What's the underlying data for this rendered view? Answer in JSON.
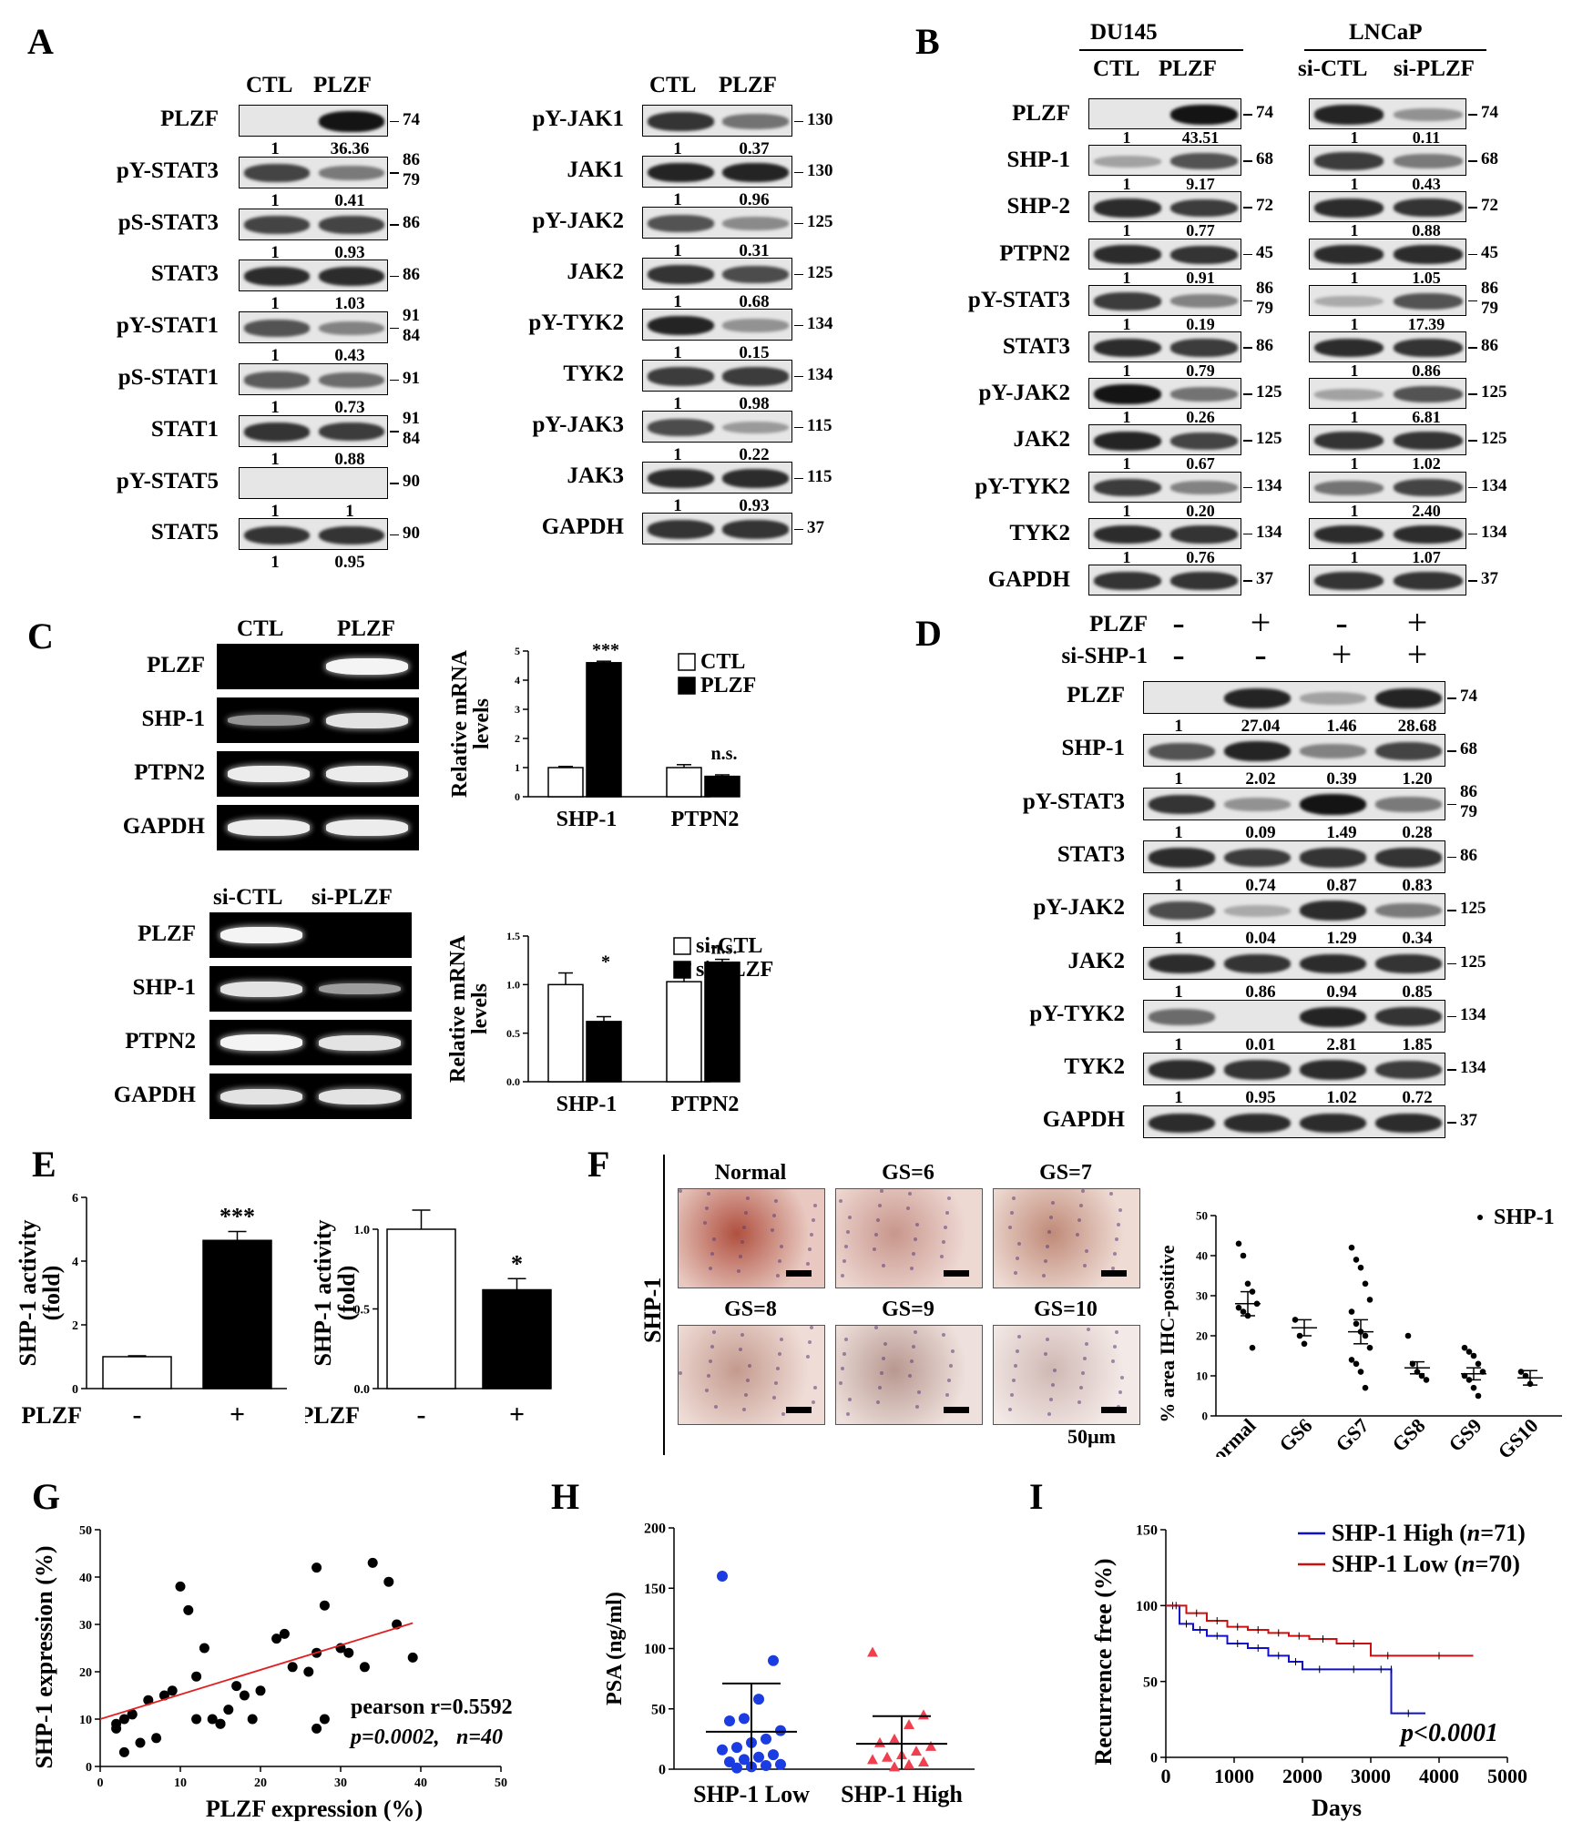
{
  "panels": {
    "A": "A",
    "B": "B",
    "C": "C",
    "D": "D",
    "E": "E",
    "F": "F",
    "G": "G",
    "H": "H",
    "I": "I"
  },
  "panel_A": {
    "left": {
      "header": [
        "CTL",
        "PLZF"
      ],
      "rows": [
        {
          "label": "PLZF",
          "q": [
            "1",
            "36.36"
          ],
          "mw": "74",
          "s": [
            0.0,
            1.0
          ]
        },
        {
          "label": "pY-STAT3",
          "q": [
            "1",
            "0.41"
          ],
          "mw": "86\n79",
          "s": [
            0.7,
            0.35
          ]
        },
        {
          "label": "pS-STAT3",
          "q": [
            "1",
            "0.93"
          ],
          "mw": "86",
          "s": [
            0.7,
            0.7
          ]
        },
        {
          "label": "STAT3",
          "q": [
            "1",
            "1.03"
          ],
          "mw": "86",
          "s": [
            0.85,
            0.85
          ]
        },
        {
          "label": "pY-STAT1",
          "q": [
            "1",
            "0.43"
          ],
          "mw": "91\n84",
          "s": [
            0.6,
            0.3
          ]
        },
        {
          "label": "pS-STAT1",
          "q": [
            "1",
            "0.73"
          ],
          "mw": "91",
          "s": [
            0.55,
            0.45
          ]
        },
        {
          "label": "STAT1",
          "q": [
            "1",
            "0.88"
          ],
          "mw": "91\n84",
          "s": [
            0.8,
            0.75
          ]
        },
        {
          "label": "pY-STAT5",
          "q": [
            "1",
            "1"
          ],
          "mw": "90",
          "s": [
            0.0,
            0.0
          ]
        },
        {
          "label": "STAT5",
          "q": [
            "1",
            "0.95"
          ],
          "mw": "90",
          "s": [
            0.8,
            0.8
          ]
        }
      ]
    },
    "right": {
      "header": [
        "CTL",
        "PLZF"
      ],
      "rows": [
        {
          "label": "pY-JAK1",
          "q": [
            "1",
            "0.37"
          ],
          "mw": "130",
          "s": [
            0.8,
            0.4
          ]
        },
        {
          "label": "JAK1",
          "q": [
            "1",
            "0.96"
          ],
          "mw": "130",
          "s": [
            0.9,
            0.9
          ]
        },
        {
          "label": "pY-JAK2",
          "q": [
            "1",
            "0.31"
          ],
          "mw": "125",
          "s": [
            0.6,
            0.25
          ]
        },
        {
          "label": "JAK2",
          "q": [
            "1",
            "0.68"
          ],
          "mw": "125",
          "s": [
            0.8,
            0.65
          ]
        },
        {
          "label": "pY-TYK2",
          "q": [
            "1",
            "0.15"
          ],
          "mw": "134",
          "s": [
            0.9,
            0.2
          ]
        },
        {
          "label": "TYK2",
          "q": [
            "1",
            "0.98"
          ],
          "mw": "134",
          "s": [
            0.75,
            0.75
          ]
        },
        {
          "label": "pY-JAK3",
          "q": [
            "1",
            "0.22"
          ],
          "mw": "115",
          "s": [
            0.65,
            0.15
          ]
        },
        {
          "label": "JAK3",
          "q": [
            "1",
            "0.93"
          ],
          "mw": "115",
          "s": [
            0.85,
            0.85
          ]
        },
        {
          "label": "GAPDH",
          "q": [
            "",
            ""
          ],
          "mw": "37",
          "s": [
            0.8,
            0.8
          ]
        }
      ]
    }
  },
  "panel_B": {
    "cells": [
      "DU145",
      "LNCaP"
    ],
    "header_du": [
      "CTL",
      "PLZF"
    ],
    "header_ln": [
      "si-CTL",
      "si-PLZF"
    ],
    "rows": [
      {
        "label": "PLZF",
        "q1": [
          "1",
          "43.51"
        ],
        "q2": [
          "1",
          "0.11"
        ],
        "mw": "74",
        "s1": [
          0.0,
          1.0
        ],
        "s2": [
          0.9,
          0.2
        ]
      },
      {
        "label": "SHP-1",
        "q1": [
          "1",
          "9.17"
        ],
        "q2": [
          "1",
          "0.43"
        ],
        "mw": "68",
        "s1": [
          0.1,
          0.6
        ],
        "s2": [
          0.75,
          0.35
        ]
      },
      {
        "label": "SHP-2",
        "q1": [
          "1",
          "0.77"
        ],
        "q2": [
          "1",
          "0.88"
        ],
        "mw": "72",
        "s1": [
          0.85,
          0.75
        ],
        "s2": [
          0.85,
          0.8
        ]
      },
      {
        "label": "PTPN2",
        "q1": [
          "1",
          "0.91"
        ],
        "q2": [
          "1",
          "1.05"
        ],
        "mw": "45",
        "s1": [
          0.85,
          0.8
        ],
        "s2": [
          0.85,
          0.85
        ]
      },
      {
        "label": "pY-STAT3",
        "q1": [
          "1",
          "0.19"
        ],
        "q2": [
          "1",
          "17.39"
        ],
        "mw": "86\n79",
        "s1": [
          0.75,
          0.3
        ],
        "s2": [
          0.05,
          0.6
        ]
      },
      {
        "label": "STAT3",
        "q1": [
          "1",
          "0.79"
        ],
        "q2": [
          "1",
          "0.86"
        ],
        "mw": "86",
        "s1": [
          0.85,
          0.75
        ],
        "s2": [
          0.85,
          0.8
        ]
      },
      {
        "label": "pY-JAK2",
        "q1": [
          "1",
          "0.26"
        ],
        "q2": [
          "1",
          "6.81"
        ],
        "mw": "125",
        "s1": [
          1.0,
          0.4
        ],
        "s2": [
          0.1,
          0.6
        ]
      },
      {
        "label": "JAK2",
        "q1": [
          "1",
          "0.67"
        ],
        "q2": [
          "1",
          "1.02"
        ],
        "mw": "125",
        "s1": [
          0.9,
          0.7
        ],
        "s2": [
          0.8,
          0.8
        ]
      },
      {
        "label": "pY-TYK2",
        "q1": [
          "1",
          "0.20"
        ],
        "q2": [
          "1",
          "2.40"
        ],
        "mw": "134",
        "s1": [
          0.75,
          0.3
        ],
        "s2": [
          0.4,
          0.7
        ]
      },
      {
        "label": "TYK2",
        "q1": [
          "1",
          "0.76"
        ],
        "q2": [
          "1",
          "1.07"
        ],
        "mw": "134",
        "s1": [
          0.85,
          0.8
        ],
        "s2": [
          0.85,
          0.85
        ]
      },
      {
        "label": "GAPDH",
        "q1": [
          "",
          ""
        ],
        "q2": [
          "",
          ""
        ],
        "mw": "37",
        "s1": [
          0.8,
          0.8
        ],
        "s2": [
          0.8,
          0.8
        ]
      }
    ]
  },
  "panel_C": {
    "top": {
      "header": [
        "CTL",
        "PLZF"
      ],
      "rows": [
        {
          "label": "PLZF",
          "s": [
            0,
            1
          ]
        },
        {
          "label": "SHP-1",
          "s": [
            0.4,
            0.9
          ]
        },
        {
          "label": "PTPN2",
          "s": [
            0.95,
            0.95
          ]
        },
        {
          "label": "GAPDH",
          "s": [
            0.95,
            0.95
          ]
        }
      ]
    },
    "bottom": {
      "header": [
        "si-CTL",
        "si-PLZF"
      ],
      "rows": [
        {
          "label": "PLZF",
          "s": [
            1,
            0
          ]
        },
        {
          "label": "SHP-1",
          "s": [
            0.9,
            0.45
          ]
        },
        {
          "label": "PTPN2",
          "s": [
            1,
            0.9
          ]
        },
        {
          "label": "GAPDH",
          "s": [
            0.9,
            0.9
          ]
        }
      ]
    }
  },
  "panel_D": {
    "conditions": [
      {
        "label": "PLZF",
        "signs": [
          "-",
          "+",
          "-",
          "+"
        ]
      },
      {
        "label": "si-SHP-1",
        "signs": [
          "-",
          "-",
          "+",
          "+"
        ]
      }
    ],
    "rows": [
      {
        "label": "PLZF",
        "q": [
          "1",
          "27.04",
          "1.46",
          "28.68"
        ],
        "mw": "74",
        "s": [
          0,
          0.9,
          0.1,
          0.9
        ]
      },
      {
        "label": "SHP-1",
        "q": [
          "1",
          "2.02",
          "0.39",
          "1.20"
        ],
        "mw": "68",
        "s": [
          0.6,
          0.9,
          0.3,
          0.7
        ]
      },
      {
        "label": "pY-STAT3",
        "q": [
          "1",
          "0.09",
          "1.49",
          "0.28"
        ],
        "mw": "86\n79",
        "s": [
          0.8,
          0.2,
          1,
          0.35
        ]
      },
      {
        "label": "STAT3",
        "q": [
          "1",
          "0.74",
          "0.87",
          "0.83"
        ],
        "mw": "86",
        "s": [
          0.85,
          0.75,
          0.8,
          0.8
        ]
      },
      {
        "label": "pY-JAK2",
        "q": [
          "1",
          "0.04",
          "1.29",
          "0.34"
        ],
        "mw": "125",
        "s": [
          0.65,
          0.05,
          0.85,
          0.35
        ]
      },
      {
        "label": "JAK2",
        "q": [
          "1",
          "0.86",
          "0.94",
          "0.85"
        ],
        "mw": "125",
        "s": [
          0.85,
          0.8,
          0.85,
          0.8
        ]
      },
      {
        "label": "pY-TYK2",
        "q": [
          "1",
          "0.01",
          "2.81",
          "1.85"
        ],
        "mw": "134",
        "s": [
          0.45,
          0.0,
          0.9,
          0.8
        ]
      },
      {
        "label": "TYK2",
        "q": [
          "1",
          "0.95",
          "1.02",
          "0.72"
        ],
        "mw": "134",
        "s": [
          0.85,
          0.8,
          0.85,
          0.75
        ]
      },
      {
        "label": "GAPDH",
        "q": [
          "",
          "",
          "",
          ""
        ],
        "mw": "37",
        "s": [
          0.85,
          0.85,
          0.85,
          0.85
        ]
      }
    ]
  },
  "panel_F": {
    "images": [
      "Normal",
      "GS=6",
      "GS=7",
      "GS=8",
      "GS=9",
      "GS=10"
    ],
    "side_label": "SHP-1",
    "scale_bar": "50µm"
  },
  "chart_data": [
    {
      "id": "C-top",
      "type": "bar",
      "categories": [
        "SHP-1",
        "PTPN2"
      ],
      "series": [
        {
          "name": "CTL",
          "values": [
            1.0,
            1.0
          ],
          "err": [
            0.04,
            0.1
          ]
        },
        {
          "name": "PLZF",
          "values": [
            4.6,
            0.7
          ],
          "err": [
            0.05,
            0.05
          ]
        }
      ],
      "ylabel": "Relative mRNA levels",
      "ylim": [
        0,
        5
      ],
      "yticks": [
        "0",
        "1",
        "2",
        "3",
        "4",
        "5"
      ],
      "annotations": [
        "***",
        "n.s."
      ]
    },
    {
      "id": "C-bottom",
      "type": "bar",
      "categories": [
        "SHP-1",
        "PTPN2"
      ],
      "series": [
        {
          "name": "si-CTL",
          "values": [
            1.0,
            1.03
          ],
          "err": [
            0.12,
            0.18
          ]
        },
        {
          "name": "si-PLZF",
          "values": [
            0.62,
            1.23
          ],
          "err": [
            0.05,
            0.03
          ]
        }
      ],
      "ylabel": "Relative mRNA levels",
      "ylim": [
        0,
        1.5
      ],
      "yticks": [
        "0.0",
        "0.5",
        "1.0",
        "1.5"
      ],
      "annotations": [
        "*",
        "n.s."
      ]
    },
    {
      "id": "E-left",
      "type": "bar",
      "categories": [
        "-",
        "+"
      ],
      "group_label": "PLZF",
      "values": [
        1.0,
        4.65
      ],
      "err": [
        0.03,
        0.28
      ],
      "ylabel": "SHP-1 activity (fold)",
      "ylim": [
        0,
        6
      ],
      "yticks": [
        "0",
        "2",
        "4",
        "6"
      ],
      "annotation": "***"
    },
    {
      "id": "E-right",
      "type": "bar",
      "categories": [
        "-",
        "+"
      ],
      "group_label": "si-PLZF",
      "values": [
        1.0,
        0.62
      ],
      "err": [
        0.12,
        0.07
      ],
      "ylabel": "SHP-1 activity (fold)",
      "ylim": [
        0,
        1.2
      ],
      "yticks": [
        "0.0",
        "0.5",
        "1.0"
      ],
      "annotation": "*"
    },
    {
      "id": "F",
      "type": "scatter",
      "legend": "SHP-1",
      "ylabel": "% area IHC-positive",
      "ylim": [
        0,
        50
      ],
      "yticks": [
        "0",
        "10",
        "20",
        "30",
        "40",
        "50"
      ],
      "categories": [
        "normal",
        "GS6",
        "GS7",
        "GS8",
        "GS9",
        "GS10"
      ],
      "groups": [
        [
          43,
          40,
          33,
          31,
          28,
          27,
          26,
          25,
          17
        ],
        [
          24,
          20,
          18
        ],
        [
          42,
          39,
          37,
          33,
          29,
          26,
          23,
          21,
          20,
          17,
          14,
          13,
          11,
          7
        ],
        [
          20,
          13,
          11,
          10,
          9
        ],
        [
          17,
          16,
          15,
          13,
          11,
          10,
          9,
          7,
          5
        ],
        [
          11,
          10,
          8
        ]
      ],
      "mean": [
        28,
        22,
        21,
        12,
        10.5,
        9.5
      ],
      "sem": [
        3,
        2,
        3,
        1.5,
        1.5,
        1.8
      ]
    },
    {
      "id": "G",
      "type": "scatter",
      "xlabel": "PLZF expression (%)",
      "ylabel": "SHP-1 expression (%)",
      "xlim": [
        0,
        50
      ],
      "ylim": [
        0,
        50
      ],
      "xticks": [
        "0",
        "10",
        "20",
        "30",
        "40",
        "50"
      ],
      "yticks": [
        "0",
        "10",
        "20",
        "30",
        "40",
        "50"
      ],
      "x": [
        2,
        3,
        4,
        3,
        5,
        7,
        4,
        2,
        8,
        10,
        11,
        12,
        9,
        13,
        14,
        15,
        16,
        17,
        18,
        19,
        20,
        22,
        24,
        26,
        27,
        27,
        28,
        28,
        30,
        31,
        33,
        34,
        36,
        37,
        39,
        6,
        12,
        27,
        23,
        15
      ],
      "y": [
        8,
        10,
        11,
        3,
        5,
        6,
        11,
        9,
        15,
        38,
        33,
        10,
        16,
        25,
        10,
        9,
        12,
        17,
        15,
        10,
        16,
        27,
        21,
        20,
        24,
        42,
        34,
        10,
        25,
        24,
        21,
        43,
        39,
        30,
        23,
        14,
        19,
        8,
        28,
        9
      ],
      "fit": {
        "slope": 0.52,
        "intercept": 10
      },
      "annotation_r": "pearson r=0.5592",
      "annotation_p": "p=0.0002,",
      "annotation_n": "n=40"
    },
    {
      "id": "H",
      "type": "scatter",
      "ylabel": "PSA (ng/ml)",
      "ylim": [
        0,
        200
      ],
      "yticks": [
        "0",
        "50",
        "100",
        "150",
        "200"
      ],
      "categories": [
        "SHP-1 Low",
        "SHP-1 High"
      ],
      "groups": [
        [
          160,
          90,
          58,
          42,
          40,
          32,
          25,
          22,
          18,
          16,
          12,
          10,
          8,
          6,
          4,
          3,
          2,
          1
        ],
        [
          97,
          45,
          37,
          25,
          22,
          19,
          15,
          12,
          10,
          8,
          6,
          4,
          2
        ]
      ],
      "mean": [
        31,
        21
      ],
      "sd": [
        40,
        23
      ]
    },
    {
      "id": "I",
      "type": "line",
      "xlabel": "Days",
      "ylabel": "Recurrence free (%)",
      "xlim": [
        0,
        5000
      ],
      "ylim": [
        0,
        150
      ],
      "xticks": [
        "0",
        "1000",
        "2000",
        "3000",
        "4000",
        "5000"
      ],
      "yticks": [
        "0",
        "50",
        "100",
        "150"
      ],
      "series": [
        {
          "name": "SHP-1 High",
          "n": "71",
          "color": "#1010cc",
          "x": [
            0,
            200,
            400,
            600,
            900,
            1200,
            1500,
            1800,
            2000,
            2500,
            3000,
            3300,
            3300,
            3800
          ],
          "y": [
            100,
            88,
            84,
            80,
            75,
            72,
            67,
            63,
            58,
            58,
            58,
            58,
            29,
            29
          ]
        },
        {
          "name": "SHP-1 Low",
          "n": "70",
          "color": "#cc1010",
          "x": [
            0,
            300,
            600,
            900,
            1200,
            1500,
            1800,
            2100,
            2500,
            3000,
            3500,
            4500
          ],
          "y": [
            100,
            95,
            90,
            86,
            84,
            82,
            80,
            78,
            75,
            67,
            67,
            67
          ]
        }
      ],
      "annotation": "p<0.0001"
    }
  ]
}
